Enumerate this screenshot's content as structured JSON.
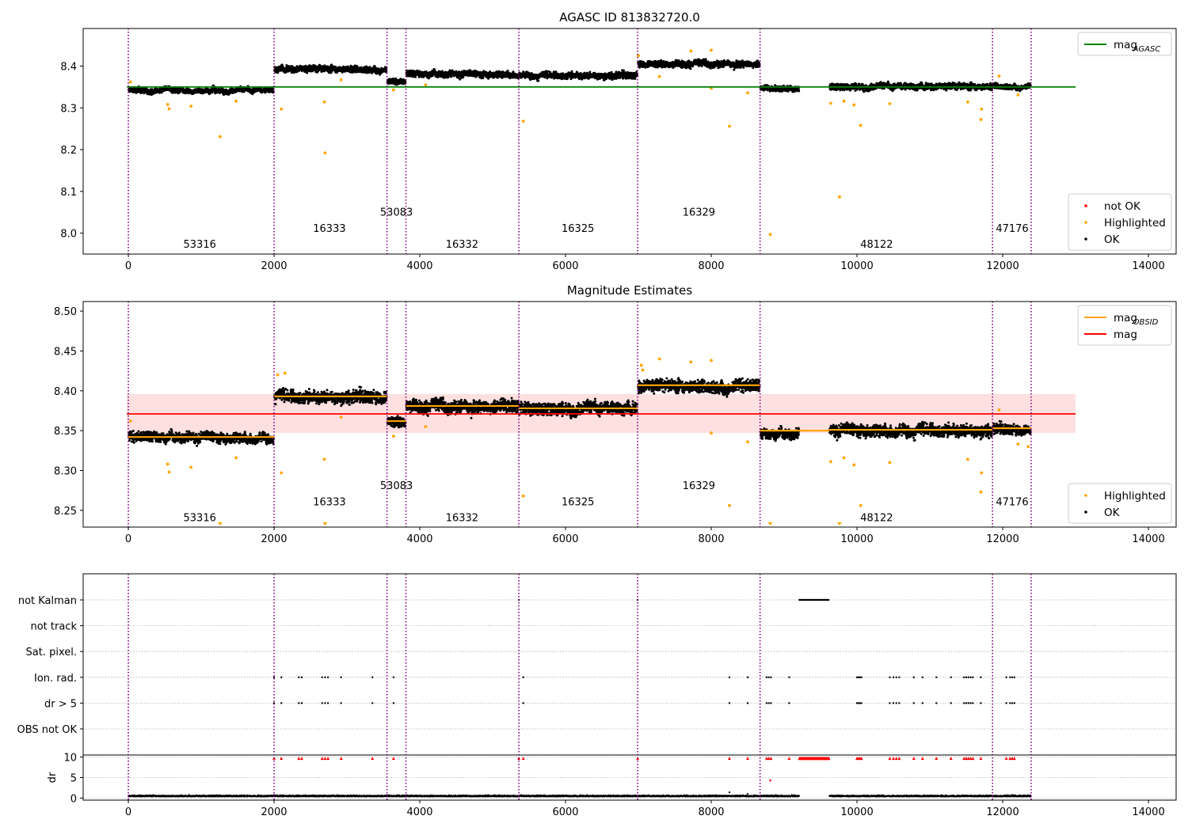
{
  "chart_data": [
    {
      "id": "p1",
      "type": "scatter",
      "title": "AGASC ID 813832720.0",
      "xlim": [
        -620,
        14380
      ],
      "ylim": [
        7.95,
        8.49
      ],
      "xticks": [
        0,
        2000,
        4000,
        6000,
        8000,
        10000,
        12000,
        14000
      ],
      "xtick_labels": [
        "0",
        "2000",
        "4000",
        "6000",
        "8000",
        "10000",
        "12000",
        "14000"
      ],
      "yticks": [
        8.0,
        8.1,
        8.2,
        8.3,
        8.4
      ],
      "ytick_labels": [
        "8.0",
        "8.1",
        "8.2",
        "8.3",
        "8.4"
      ],
      "obs_boundaries": [
        0,
        2000,
        3550,
        3810,
        5360,
        6990,
        8670,
        11860,
        12390
      ],
      "obsid_labels": [
        {
          "text": "53316",
          "x": 980,
          "y": 7.975
        },
        {
          "text": "16333",
          "x": 2760,
          "y": 8.013
        },
        {
          "text": "53083",
          "x": 3680,
          "y": 8.051
        },
        {
          "text": "16332",
          "x": 4580,
          "y": 7.975
        },
        {
          "text": "16325",
          "x": 6170,
          "y": 8.013
        },
        {
          "text": "16329",
          "x": 7830,
          "y": 8.051
        },
        {
          "text": "48122",
          "x": 10270,
          "y": 7.975
        },
        {
          "text": "47176",
          "x": 12130,
          "y": 8.013
        }
      ],
      "segments": [
        {
          "x0": 0,
          "x1": 2000,
          "mean": 8.342,
          "spread": 0.004
        },
        {
          "x0": 2000,
          "x1": 3550,
          "mean": 8.393,
          "spread": 0.005
        },
        {
          "x0": 3550,
          "x1": 3810,
          "mean": 8.362,
          "spread": 0.004
        },
        {
          "x0": 3810,
          "x1": 5360,
          "mean": 8.381,
          "spread": 0.005
        },
        {
          "x0": 5360,
          "x1": 6990,
          "mean": 8.378,
          "spread": 0.005
        },
        {
          "x0": 6990,
          "x1": 8670,
          "mean": 8.406,
          "spread": 0.005
        },
        {
          "x0": 8670,
          "x1": 9210,
          "mean": 8.346,
          "spread": 0.004
        },
        {
          "x0": 9620,
          "x1": 11860,
          "mean": 8.351,
          "spread": 0.005
        },
        {
          "x0": 11860,
          "x1": 12390,
          "mean": 8.352,
          "spread": 0.004
        }
      ],
      "highlighted_points": [
        {
          "x": 30,
          "y": 8.362
        },
        {
          "x": 540,
          "y": 8.308
        },
        {
          "x": 560,
          "y": 8.298
        },
        {
          "x": 860,
          "y": 8.304
        },
        {
          "x": 1260,
          "y": 8.231
        },
        {
          "x": 1480,
          "y": 8.316
        },
        {
          "x": 2100,
          "y": 8.297
        },
        {
          "x": 2690,
          "y": 8.314
        },
        {
          "x": 2700,
          "y": 8.192
        },
        {
          "x": 2920,
          "y": 8.367
        },
        {
          "x": 3640,
          "y": 8.343
        },
        {
          "x": 4080,
          "y": 8.355
        },
        {
          "x": 5420,
          "y": 8.268
        },
        {
          "x": 7000,
          "y": 8.425
        },
        {
          "x": 7290,
          "y": 8.375
        },
        {
          "x": 7720,
          "y": 8.436
        },
        {
          "x": 8000,
          "y": 8.438
        },
        {
          "x": 8000,
          "y": 8.347
        },
        {
          "x": 8250,
          "y": 8.256
        },
        {
          "x": 8500,
          "y": 8.336
        },
        {
          "x": 8810,
          "y": 7.997
        },
        {
          "x": 9640,
          "y": 8.311
        },
        {
          "x": 9760,
          "y": 8.087
        },
        {
          "x": 9820,
          "y": 8.316
        },
        {
          "x": 9960,
          "y": 8.307
        },
        {
          "x": 10050,
          "y": 8.258
        },
        {
          "x": 10450,
          "y": 8.31
        },
        {
          "x": 11520,
          "y": 8.314
        },
        {
          "x": 11710,
          "y": 8.297
        },
        {
          "x": 11700,
          "y": 8.272
        },
        {
          "x": 11950,
          "y": 8.376
        },
        {
          "x": 12210,
          "y": 8.331
        }
      ],
      "lines": [
        {
          "name": "mag_AGASC",
          "y": 8.35,
          "x0": -20,
          "x1": 13000,
          "color": "#008000"
        }
      ],
      "legend_top": [
        {
          "kind": "line",
          "color": "#008000",
          "label": "mag",
          "sub": "AGASC"
        }
      ],
      "legend_bottom": [
        {
          "kind": "dot",
          "color": "#ff0000",
          "label": "not OK"
        },
        {
          "kind": "dot",
          "color": "#ffa500",
          "label": "Highlighted"
        },
        {
          "kind": "dot",
          "color": "#000000",
          "label": "OK"
        }
      ]
    },
    {
      "id": "p2",
      "type": "scatter",
      "title": "Magnitude Estimates",
      "xlim": [
        -620,
        14380
      ],
      "ylim": [
        8.229,
        8.512
      ],
      "xticks": [
        0,
        2000,
        4000,
        6000,
        8000,
        10000,
        12000,
        14000
      ],
      "xtick_labels": [
        "0",
        "2000",
        "4000",
        "6000",
        "8000",
        "10000",
        "12000",
        "14000"
      ],
      "yticks": [
        8.25,
        8.3,
        8.35,
        8.4,
        8.45,
        8.5
      ],
      "ytick_labels": [
        "8.25",
        "8.30",
        "8.35",
        "8.40",
        "8.45",
        "8.50"
      ],
      "obs_boundaries": [
        0,
        2000,
        3550,
        3810,
        5360,
        6990,
        8670,
        11860,
        12390
      ],
      "obsid_labels": [
        {
          "text": "53316",
          "x": 980,
          "y": 8.2415
        },
        {
          "text": "16333",
          "x": 2760,
          "y": 8.2615
        },
        {
          "text": "53083",
          "x": 3680,
          "y": 8.2815
        },
        {
          "text": "16332",
          "x": 4580,
          "y": 8.2415
        },
        {
          "text": "16325",
          "x": 6170,
          "y": 8.2615
        },
        {
          "text": "16329",
          "x": 7830,
          "y": 8.2815
        },
        {
          "text": "48122",
          "x": 10270,
          "y": 8.2415
        },
        {
          "text": "47176",
          "x": 12130,
          "y": 8.2615
        }
      ],
      "segments": [
        {
          "x0": 0,
          "x1": 2000,
          "mean": 8.342,
          "spread": 0.004
        },
        {
          "x0": 2000,
          "x1": 3550,
          "mean": 8.393,
          "spread": 0.005
        },
        {
          "x0": 3550,
          "x1": 3810,
          "mean": 8.362,
          "spread": 0.004
        },
        {
          "x0": 3810,
          "x1": 5360,
          "mean": 8.381,
          "spread": 0.005
        },
        {
          "x0": 5360,
          "x1": 6990,
          "mean": 8.378,
          "spread": 0.005
        },
        {
          "x0": 6990,
          "x1": 8670,
          "mean": 8.406,
          "spread": 0.005
        },
        {
          "x0": 8670,
          "x1": 9210,
          "mean": 8.346,
          "spread": 0.004
        },
        {
          "x0": 9620,
          "x1": 11860,
          "mean": 8.351,
          "spread": 0.005
        },
        {
          "x0": 11860,
          "x1": 12390,
          "mean": 8.352,
          "spread": 0.004
        }
      ],
      "obsid_mags": [
        {
          "x0": 0,
          "x1": 2000,
          "y": 8.342
        },
        {
          "x0": 2000,
          "x1": 3550,
          "y": 8.393
        },
        {
          "x0": 3550,
          "x1": 3810,
          "y": 8.362
        },
        {
          "x0": 3810,
          "x1": 5360,
          "y": 8.381
        },
        {
          "x0": 5360,
          "x1": 6990,
          "y": 8.378
        },
        {
          "x0": 6990,
          "x1": 8670,
          "y": 8.407
        },
        {
          "x0": 8670,
          "x1": 9620,
          "y": 8.35
        },
        {
          "x0": 9620,
          "x1": 11860,
          "y": 8.351
        },
        {
          "x0": 11860,
          "x1": 12390,
          "y": 8.353
        }
      ],
      "mag_line": {
        "y": 8.371,
        "x0": -20,
        "x1": 13000,
        "band": [
          8.347,
          8.396
        ],
        "color": "#ff0000"
      },
      "highlighted_points": [
        {
          "x": 30,
          "y": 8.362
        },
        {
          "x": 540,
          "y": 8.308
        },
        {
          "x": 560,
          "y": 8.298
        },
        {
          "x": 860,
          "y": 8.304
        },
        {
          "x": 1480,
          "y": 8.316
        },
        {
          "x": 2050,
          "y": 8.42
        },
        {
          "x": 2150,
          "y": 8.422
        },
        {
          "x": 2100,
          "y": 8.297
        },
        {
          "x": 2690,
          "y": 8.314
        },
        {
          "x": 2920,
          "y": 8.367
        },
        {
          "x": 3640,
          "y": 8.343
        },
        {
          "x": 4080,
          "y": 8.355
        },
        {
          "x": 5420,
          "y": 8.268
        },
        {
          "x": 7040,
          "y": 8.432
        },
        {
          "x": 7060,
          "y": 8.426
        },
        {
          "x": 7290,
          "y": 8.44
        },
        {
          "x": 7720,
          "y": 8.436
        },
        {
          "x": 8000,
          "y": 8.438
        },
        {
          "x": 8000,
          "y": 8.347
        },
        {
          "x": 8250,
          "y": 8.256
        },
        {
          "x": 8500,
          "y": 8.336
        },
        {
          "x": 9640,
          "y": 8.311
        },
        {
          "x": 9820,
          "y": 8.316
        },
        {
          "x": 9960,
          "y": 8.307
        },
        {
          "x": 10050,
          "y": 8.256
        },
        {
          "x": 10450,
          "y": 8.31
        },
        {
          "x": 11520,
          "y": 8.314
        },
        {
          "x": 11710,
          "y": 8.297
        },
        {
          "x": 11700,
          "y": 8.273
        },
        {
          "x": 11950,
          "y": 8.376
        },
        {
          "x": 12210,
          "y": 8.333
        },
        {
          "x": 12350,
          "y": 8.33
        }
      ],
      "lower_limit_markers": [
        1260,
        2700,
        8810,
        9760
      ],
      "legend_top": [
        {
          "kind": "line",
          "color": "#ffa500",
          "label": "mag",
          "sub": "OBSID"
        },
        {
          "kind": "line",
          "color": "#ff0000",
          "label": "mag",
          "sub": ""
        }
      ],
      "legend_bottom": [
        {
          "kind": "dot",
          "color": "#ffa500",
          "label": "Highlighted"
        },
        {
          "kind": "dot",
          "color": "#000000",
          "label": "OK"
        }
      ]
    },
    {
      "id": "p3",
      "type": "scatter",
      "xlim": [
        -620,
        14380
      ],
      "xticks": [
        0,
        2000,
        4000,
        6000,
        8000,
        10000,
        12000,
        14000
      ],
      "xtick_labels": [
        "0",
        "2000",
        "4000",
        "6000",
        "8000",
        "10000",
        "12000",
        "14000"
      ],
      "flag_labels": [
        "not Kalman",
        "not track",
        "Sat. pixel.",
        "Ion. rad.",
        "dr > 5",
        "OBS not OK"
      ],
      "obs_boundaries": [
        0,
        2000,
        3550,
        3810,
        5360,
        6990,
        8670,
        11860,
        12390
      ],
      "flag_points": {
        "not Kalman": [
          5360,
          6990
        ],
        "Ion. rad.": [
          2000,
          2100,
          2340,
          2380,
          2660,
          2700,
          2740,
          2920,
          3350,
          3640,
          5420,
          8250,
          8500,
          8760,
          8790,
          8820,
          9070,
          10000,
          10020,
          10040,
          10060,
          10450,
          10500,
          10540,
          10580,
          10780,
          10900,
          11090,
          11290,
          11470,
          11500,
          11530,
          11560,
          11590,
          11700,
          12050,
          12100,
          12130,
          12160
        ],
        "dr > 5": [
          2000,
          2100,
          2340,
          2380,
          2660,
          2700,
          2740,
          2920,
          3350,
          3640,
          5420,
          8250,
          8500,
          8760,
          8790,
          8820,
          9070,
          10000,
          10020,
          10040,
          10060,
          10450,
          10500,
          10540,
          10580,
          10780,
          10900,
          11090,
          11290,
          11470,
          11500,
          11530,
          11560,
          11590,
          11700,
          12050,
          12100,
          12130,
          12160
        ]
      },
      "not_kalman_range": [
        9210,
        9620
      ],
      "dr_panel": {
        "ylabel": "dr",
        "ylim": [
          -0.5,
          10.5
        ],
        "yticks": [
          0,
          5,
          10
        ],
        "ytick_labels": [
          "0",
          "5",
          "10"
        ],
        "segments": [
          [
            0,
            9210
          ],
          [
            9620,
            12390
          ]
        ],
        "flat_value": 0.4,
        "clipped_red": [
          2000,
          2100,
          2340,
          2380,
          2660,
          2700,
          2740,
          2920,
          3350,
          3640,
          5360,
          5420,
          6990,
          8250,
          8500,
          8760,
          8790,
          8820,
          9070,
          10000,
          10020,
          10040,
          10060,
          10450,
          10500,
          10540,
          10580,
          10780,
          10900,
          11090,
          11290,
          11470,
          11500,
          11530,
          11560,
          11590,
          11700,
          12050,
          12100,
          12130,
          12160
        ],
        "red_range": [
          9210,
          9620
        ],
        "extra_red": [
          {
            "x": 8810,
            "y": 4.3
          }
        ],
        "extra_black": [
          {
            "x": 8250,
            "y": 1.4
          },
          {
            "x": 8500,
            "y": 1.0
          }
        ]
      }
    }
  ]
}
